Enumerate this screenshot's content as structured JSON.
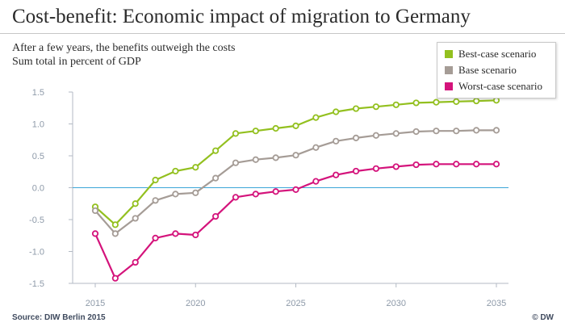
{
  "header": {
    "title": "Cost-benefit: Economic impact of migration to Germany",
    "subtitle": "After a few years, the benefits outweigh the costs",
    "subtitle2": "Sum total in percent of GDP"
  },
  "footer": {
    "source": "Source: DIW Berlin 2015",
    "credit": "© DW"
  },
  "colors": {
    "best": "#93c01f",
    "base": "#a59c96",
    "worst": "#d4137b",
    "zero_line": "#3ba6d8",
    "axis": "#b3bac4",
    "tick_label": "#8e9aa9",
    "grid": "#e3e7ec"
  },
  "chart_data": {
    "type": "line",
    "x": [
      2015,
      2016,
      2017,
      2018,
      2019,
      2020,
      2021,
      2022,
      2023,
      2024,
      2025,
      2026,
      2027,
      2028,
      2029,
      2030,
      2031,
      2032,
      2033,
      2034,
      2035
    ],
    "series": [
      {
        "name": "Best-case scenario",
        "color": "#93c01f",
        "values": [
          -0.3,
          -0.58,
          -0.25,
          0.12,
          0.26,
          0.32,
          0.58,
          0.85,
          0.89,
          0.93,
          0.97,
          1.1,
          1.19,
          1.24,
          1.27,
          1.3,
          1.33,
          1.34,
          1.35,
          1.36,
          1.37
        ]
      },
      {
        "name": "Base scenario",
        "color": "#a59c96",
        "values": [
          -0.36,
          -0.72,
          -0.48,
          -0.2,
          -0.1,
          -0.08,
          0.15,
          0.39,
          0.44,
          0.47,
          0.51,
          0.63,
          0.73,
          0.78,
          0.82,
          0.85,
          0.88,
          0.89,
          0.89,
          0.9,
          0.9
        ]
      },
      {
        "name": "Worst-case scenario",
        "color": "#d4137b",
        "values": [
          -0.72,
          -1.42,
          -1.17,
          -0.79,
          -0.72,
          -0.74,
          -0.45,
          -0.15,
          -0.1,
          -0.06,
          -0.03,
          0.1,
          0.2,
          0.26,
          0.3,
          0.33,
          0.36,
          0.37,
          0.37,
          0.37,
          0.37
        ]
      }
    ],
    "x_ticks": [
      2015,
      2020,
      2025,
      2030,
      2035
    ],
    "x_tick_labels": [
      "2015",
      "2020",
      "2025",
      "2030",
      "2035"
    ],
    "y_ticks": [
      1.5,
      1.0,
      0.5,
      0.0,
      -0.5,
      -1.0,
      -1.5
    ],
    "y_tick_labels": [
      "1.5",
      "1.0",
      "0.5",
      "0.0",
      "-0.5",
      "-1.0",
      "-1.5"
    ],
    "xlim": [
      2015,
      2035
    ],
    "ylim": [
      -1.5,
      1.5
    ],
    "grid": "horizontal",
    "legend": "top-right",
    "reference_line": 0
  }
}
